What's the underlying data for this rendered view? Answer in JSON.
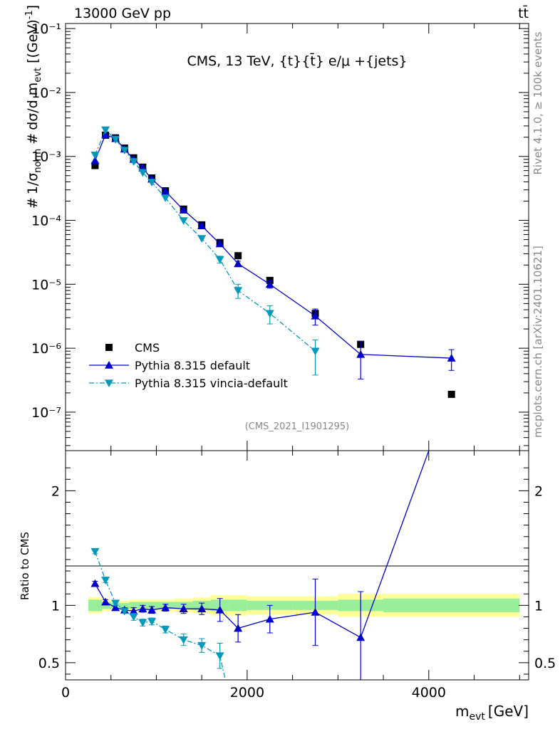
{
  "header": {
    "left": "13000 GeV pp",
    "right": "tt̄"
  },
  "main_title": "CMS, 13 TeV, {t}{t̄} e/μ +{jets}",
  "side_labels": {
    "rivet": "Rivet 4.1.0, ≥ 100k events",
    "mcplots": "mcplots.cern.ch [arXiv:2401.10621]"
  },
  "analysis_id": "(CMS_2021_I1901295)",
  "chart_data": [
    {
      "type": "scatter",
      "panel": "main",
      "yscale": "log",
      "xlim": [
        0,
        5100
      ],
      "ylim": [
        2.5e-08,
        0.12
      ],
      "ytick_labels": [
        "10⁻⁷",
        "10⁻⁶",
        "10⁻⁵",
        "10⁻⁴",
        "10⁻³",
        "10⁻²",
        "10⁻¹"
      ],
      "ylabel": "# 1/σ_norm  # dσ/d m_evt  [(GeV)⁻¹]",
      "legend_position": "bottom-left",
      "series": [
        {
          "name": "CMS",
          "color": "#000000",
          "marker": "square",
          "x": [
            325,
            440,
            550,
            650,
            750,
            850,
            950,
            1100,
            1300,
            1500,
            1700,
            1900,
            2250,
            2750,
            3250,
            4250
          ],
          "y": [
            0.00072,
            0.00215,
            0.00195,
            0.00135,
            0.00095,
            0.00068,
            0.00046,
            0.00029,
            0.00015,
            8.5e-05,
            4.5e-05,
            2.8e-05,
            1.15e-05,
            3.5e-06,
            1.15e-06,
            1.9e-07
          ]
        },
        {
          "name": "Pythia 8.315 default",
          "color": "#0000cc",
          "marker": "triangle-up",
          "line": "solid",
          "x": [
            325,
            440,
            550,
            650,
            750,
            850,
            950,
            1100,
            1300,
            1500,
            1700,
            1900,
            2250,
            2750,
            3250,
            4250
          ],
          "y": [
            0.00086,
            0.0022,
            0.0019,
            0.0013,
            0.0009,
            0.00066,
            0.00044,
            0.000285,
            0.000145,
            8.2e-05,
            4.3e-05,
            2.1e-05,
            1e-05,
            3.2e-06,
            8e-07,
            7e-07
          ],
          "err_lo": [
            0,
            0,
            0,
            0,
            0,
            0,
            0,
            0,
            0,
            0,
            0,
            2e-06,
            1.3e-06,
            9e-07,
            4.7e-07,
            2.5e-07
          ],
          "err_hi": [
            0,
            0,
            0,
            0,
            0,
            0,
            0,
            0,
            0,
            0,
            0,
            2e-06,
            1.3e-06,
            9e-07,
            4.7e-07,
            2.5e-07
          ]
        },
        {
          "name": "Pythia 8.315 vincia-default",
          "color": "#0099bb",
          "marker": "triangle-down",
          "line": "dashdot",
          "x": [
            325,
            440,
            550,
            650,
            750,
            850,
            950,
            1100,
            1300,
            1500,
            1700,
            1900,
            2250,
            2750
          ],
          "y": [
            0.00105,
            0.0026,
            0.00185,
            0.00125,
            0.00083,
            0.00056,
            0.000395,
            0.000225,
            9.9e-05,
            5.2e-05,
            2.45e-05,
            8e-06,
            3.5e-06,
            9e-07
          ],
          "err_lo": [
            0,
            0,
            0,
            0,
            0,
            0,
            0,
            0,
            0,
            0,
            3e-06,
            2e-06,
            1.1e-06,
            5.2e-07
          ],
          "err_hi": [
            0,
            0,
            0,
            0,
            0,
            0,
            0,
            0,
            0,
            0,
            3e-06,
            2e-06,
            1.1e-06,
            4.5e-07
          ]
        }
      ]
    },
    {
      "type": "line",
      "panel": "ratio",
      "xlim": [
        0,
        5100
      ],
      "ylim": [
        0.35,
        2.35
      ],
      "yticks": [
        0.5,
        1,
        2
      ],
      "ytick_labels": [
        "0.5",
        "1",
        "2"
      ],
      "xticks": [
        0,
        2000,
        4000
      ],
      "xtick_labels": [
        "0",
        "2000",
        "4000"
      ],
      "ylabel": "Ratio to CMS",
      "xlabel": "m_evt [GeV]",
      "uncertainty_bands": {
        "bin_edges": [
          250,
          400,
          500,
          600,
          700,
          800,
          900,
          1000,
          1200,
          1400,
          1600,
          1800,
          2000,
          2500,
          3000,
          3500,
          5000
        ],
        "inner": [
          0.05,
          0.03,
          0.02,
          0.02,
          0.03,
          0.03,
          0.03,
          0.03,
          0.03,
          0.04,
          0.05,
          0.05,
          0.04,
          0.04,
          0.05,
          0.06
        ],
        "outer": [
          0.07,
          0.05,
          0.04,
          0.04,
          0.05,
          0.05,
          0.05,
          0.05,
          0.06,
          0.07,
          0.09,
          0.09,
          0.08,
          0.08,
          0.1,
          0.1
        ],
        "inner_color": "#99ee99",
        "outer_color": "#ffff99"
      },
      "series": [
        {
          "name": "Pythia 8.315 default",
          "color": "#0000cc",
          "marker": "triangle-up",
          "line": "solid",
          "x": [
            325,
            440,
            550,
            650,
            750,
            850,
            950,
            1100,
            1300,
            1500,
            1700,
            1900,
            2250,
            2750,
            3250,
            4000
          ],
          "y": [
            1.19,
            1.03,
            0.98,
            0.96,
            0.95,
            0.97,
            0.96,
            0.98,
            0.97,
            0.97,
            0.96,
            0.8,
            0.88,
            0.94,
            0.72,
            2.35
          ],
          "err": [
            0.02,
            0.02,
            0.02,
            0.02,
            0.03,
            0.03,
            0.03,
            0.03,
            0.04,
            0.05,
            0.1,
            0.12,
            0.12,
            0.29,
            0.4,
            0
          ],
          "marker_count": 15
        },
        {
          "name": "Pythia 8.315 vincia-default",
          "color": "#0099bb",
          "marker": "triangle-down",
          "line": "dashdot",
          "x": [
            325,
            440,
            550,
            650,
            750,
            850,
            950,
            1100,
            1300,
            1500,
            1700,
            1760
          ],
          "y": [
            1.47,
            1.22,
            1.02,
            0.95,
            0.9,
            0.85,
            0.86,
            0.79,
            0.7,
            0.65,
            0.56,
            0.35
          ],
          "err": [
            0.02,
            0.02,
            0.02,
            0.02,
            0.03,
            0.03,
            0.03,
            0.03,
            0.05,
            0.06,
            0.11,
            0
          ],
          "marker_count": 11
        }
      ]
    }
  ]
}
